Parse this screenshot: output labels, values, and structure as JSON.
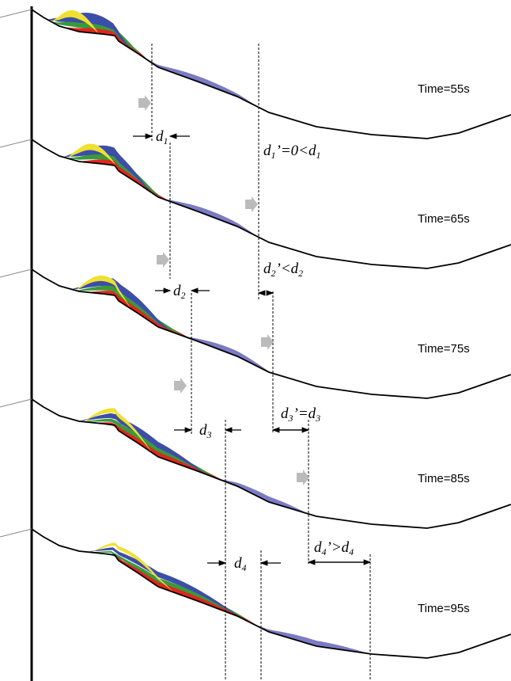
{
  "panels": [
    {
      "time": "Time=55s"
    },
    {
      "time": "Time=65s"
    },
    {
      "time": "Time=75s"
    },
    {
      "time": "Time=85s"
    },
    {
      "time": "Time=95s"
    }
  ],
  "distances": [
    {
      "near": [
        {
          "t": "d"
        },
        {
          "sub": "1"
        }
      ],
      "far": [
        {
          "t": "d"
        },
        {
          "sub": "1"
        },
        {
          "t": "’=0<d"
        },
        {
          "sub": "1"
        }
      ]
    },
    {
      "near": [
        {
          "t": "d"
        },
        {
          "sub": "2"
        }
      ],
      "far": [
        {
          "t": "d"
        },
        {
          "sub": "2"
        },
        {
          "t": "’<d"
        },
        {
          "sub": "2"
        }
      ]
    },
    {
      "near": [
        {
          "t": "d"
        },
        {
          "sub": "3"
        }
      ],
      "far": [
        {
          "t": "d"
        },
        {
          "sub": "3"
        },
        {
          "t": "’=d"
        },
        {
          "sub": "3"
        }
      ]
    },
    {
      "near": [
        {
          "t": "d"
        },
        {
          "sub": "4"
        }
      ],
      "far": [
        {
          "t": "d"
        },
        {
          "sub": "4"
        },
        {
          "t": "’>d"
        },
        {
          "sub": "4"
        }
      ]
    }
  ]
}
